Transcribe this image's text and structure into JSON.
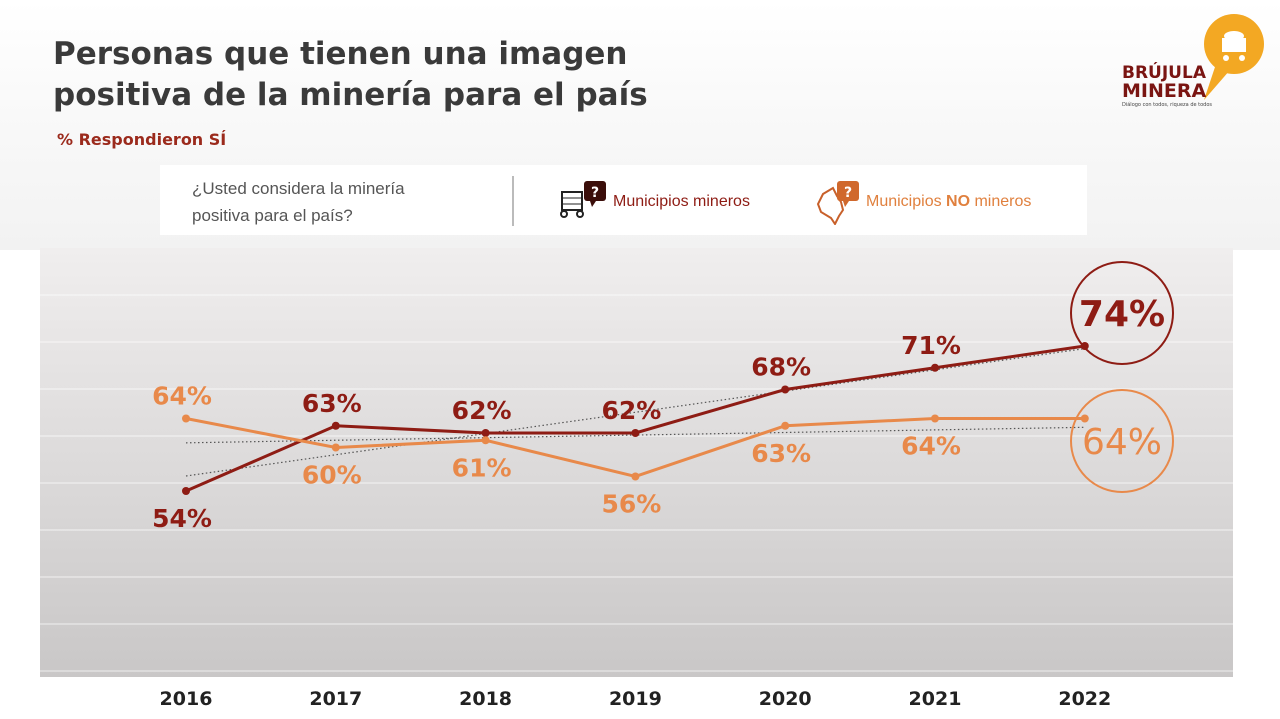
{
  "header": {
    "title": "Personas que tienen una imagen\npositiva de la minería para el país",
    "subtitle": "% Respondieron SÍ"
  },
  "legend": {
    "question": "¿Usted considera la minería\npositiva para el país?",
    "item1": "Municipios mineros",
    "item2_pre": "Municipios ",
    "item2_bold": "NO",
    "item2_post": " mineros",
    "icon1": "mining-cart-question-icon",
    "icon2": "colombia-map-question-icon"
  },
  "logo": {
    "line1": "BRÚJULA",
    "line2": "MINERA",
    "tagline": "Diálogo con todos, riqueza de todos"
  },
  "colors": {
    "mineros": "#8e1c14",
    "no_mineros": "#e8894a"
  },
  "chart_data": {
    "type": "line",
    "categories": [
      "2016",
      "2017",
      "2018",
      "2019",
      "2020",
      "2021",
      "2022"
    ],
    "ylim": [
      40,
      90
    ],
    "grid": true,
    "trendlines": true,
    "legend_placement": "top",
    "series": [
      {
        "name": "Municipios mineros",
        "values": [
          54,
          63,
          62,
          62,
          68,
          71,
          74
        ],
        "labels": [
          "54%",
          "63%",
          "62%",
          "62%",
          "68%",
          "71%",
          "74%"
        ]
      },
      {
        "name": "Municipios NO mineros",
        "values": [
          64,
          60,
          61,
          56,
          63,
          64,
          64
        ],
        "labels": [
          "64%",
          "60%",
          "61%",
          "56%",
          "63%",
          "64%",
          "64%"
        ]
      }
    ]
  }
}
